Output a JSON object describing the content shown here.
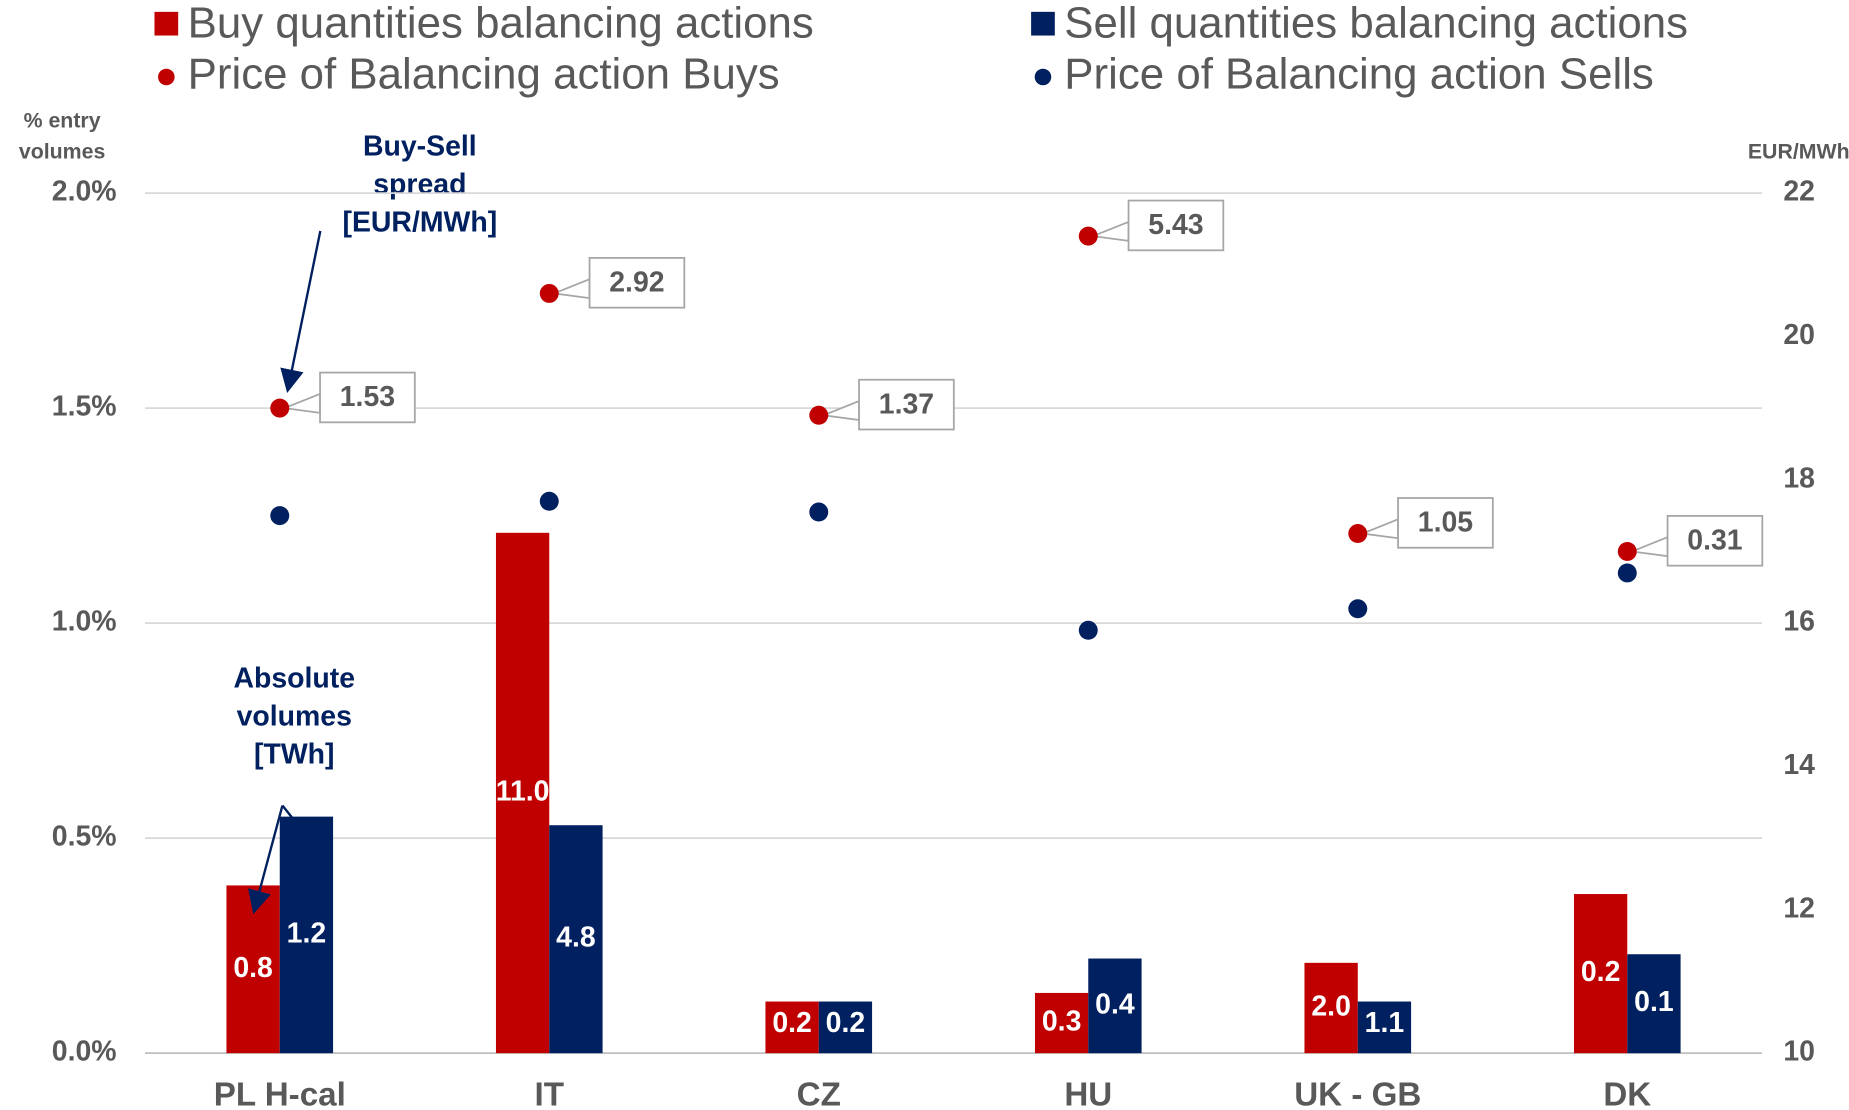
{
  "chart_data": {
    "type": "bar",
    "categories": [
      "PL H-cal",
      "IT",
      "CZ",
      "HU",
      "UK - GB",
      "DK"
    ],
    "y_label": [
      "% entry",
      "volumes"
    ],
    "y2_label": "EUR/MWh",
    "ylim": [
      0,
      2.0
    ],
    "yticks": [
      {
        "value": 0,
        "label": "0.0%"
      },
      {
        "value": 0.5,
        "label": "0.5%"
      },
      {
        "value": 1.0,
        "label": "1.0%"
      },
      {
        "value": 1.5,
        "label": "1.5%"
      },
      {
        "value": 2.0,
        "label": "2.0%"
      }
    ],
    "y2lim": [
      10,
      22
    ],
    "y2ticks": [
      10,
      12,
      14,
      16,
      18,
      20,
      22
    ],
    "grid": true,
    "series": [
      {
        "name": "Buy quantities balancing actions",
        "type": "bar",
        "color": "#c00000",
        "values": [
          0.39,
          1.21,
          0.12,
          0.14,
          0.21,
          0.37
        ],
        "data_labels": [
          "0.8",
          "11.0",
          "0.2",
          "0.3",
          "2.0",
          "0.2"
        ]
      },
      {
        "name": "Sell quantities balancing actions",
        "type": "bar",
        "color": "#002060",
        "values": [
          0.55,
          0.53,
          0.12,
          0.22,
          0.12,
          0.23
        ],
        "data_labels": [
          "1.2",
          "4.8",
          "0.2",
          "0.4",
          "1.1",
          "0.1"
        ]
      },
      {
        "name": "Price of Balancing action Buys",
        "type": "scatter",
        "axis": "y2",
        "color": "#c00000",
        "values": [
          19.0,
          20.6,
          18.9,
          21.4,
          17.25,
          17.0
        ]
      },
      {
        "name": "Price of Balancing action Sells",
        "type": "scatter",
        "axis": "y2",
        "color": "#002060",
        "values": [
          17.5,
          17.7,
          17.55,
          15.9,
          16.2,
          16.7
        ]
      }
    ],
    "spread_labels": [
      "1.53",
      "2.92",
      "1.37",
      "5.43",
      "1.05",
      "0.31"
    ],
    "annotations": [
      {
        "text": [
          "Buy-Sell",
          "spread",
          "[EUR/MWh]"
        ]
      },
      {
        "text": [
          "Absolute",
          "volumes",
          "[TWh]"
        ]
      }
    ]
  }
}
